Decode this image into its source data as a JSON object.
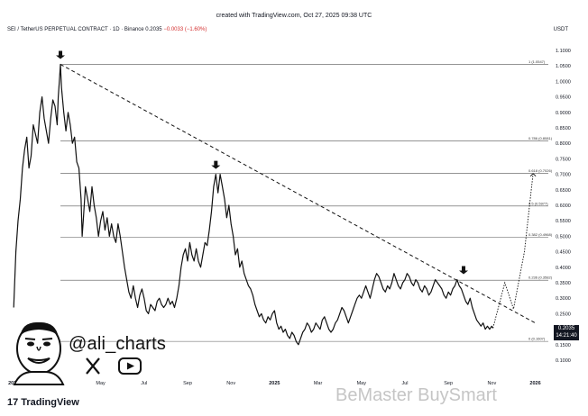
{
  "header": {
    "created_text": "created with TradingView.com, Oct 27, 2025 09:38 UTC",
    "symbol_text": "SEI / TetherUS PERPETUAL CONTRACT · 1D · Binance",
    "price": "0.2035",
    "change": "−0.0033 (−1.60%)",
    "currency": "USDT"
  },
  "branding": {
    "handle": "@ali_charts",
    "logo_text": "TradingView",
    "logo_mark": "17",
    "watermark": "BeMaster BuySmart",
    "icons": [
      "x-icon",
      "youtube-icon"
    ]
  },
  "price_badge": {
    "price": "0.2035",
    "timer": "14:21:40"
  },
  "chart_data": {
    "type": "line",
    "title": "SEI / TetherUS PERPETUAL CONTRACT · 1D · Binance",
    "ylim": [
      0.1,
      1.1
    ],
    "y_ticks": [
      "1.1000",
      "1.0500",
      "1.0000",
      "0.9500",
      "0.9000",
      "0.8500",
      "0.8000",
      "0.7500",
      "0.7000",
      "0.6500",
      "0.6000",
      "0.5500",
      "0.5000",
      "0.4500",
      "0.4000",
      "0.3500",
      "0.3000",
      "0.2500",
      "0.2000",
      "0.1500",
      "0.1000"
    ],
    "x_ticks": [
      {
        "label": "2024",
        "t": 0.0
      },
      {
        "label": "Mar",
        "t": 2.0
      },
      {
        "label": "May",
        "t": 4.0
      },
      {
        "label": "Jul",
        "t": 6.0
      },
      {
        "label": "Sep",
        "t": 8.0
      },
      {
        "label": "Nov",
        "t": 10.0
      },
      {
        "label": "2025",
        "t": 12.0
      },
      {
        "label": "Mar",
        "t": 14.0
      },
      {
        "label": "May",
        "t": 16.0
      },
      {
        "label": "Jul",
        "t": 18.0
      },
      {
        "label": "Sep",
        "t": 20.0
      },
      {
        "label": "Nov",
        "t": 22.0
      },
      {
        "label": "2026",
        "t": 24.0
      }
    ],
    "price_series": [
      [
        0.0,
        0.27
      ],
      [
        0.1,
        0.45
      ],
      [
        0.2,
        0.55
      ],
      [
        0.3,
        0.62
      ],
      [
        0.4,
        0.72
      ],
      [
        0.5,
        0.78
      ],
      [
        0.6,
        0.82
      ],
      [
        0.7,
        0.72
      ],
      [
        0.8,
        0.76
      ],
      [
        0.9,
        0.86
      ],
      [
        1.0,
        0.83
      ],
      [
        1.1,
        0.8
      ],
      [
        1.2,
        0.9
      ],
      [
        1.3,
        0.95
      ],
      [
        1.4,
        0.88
      ],
      [
        1.5,
        0.84
      ],
      [
        1.6,
        0.8
      ],
      [
        1.7,
        0.88
      ],
      [
        1.8,
        0.94
      ],
      [
        1.9,
        0.92
      ],
      [
        2.0,
        0.86
      ],
      [
        2.05,
        0.95
      ],
      [
        2.1,
        1.0
      ],
      [
        2.15,
        1.055
      ],
      [
        2.2,
        0.98
      ],
      [
        2.3,
        0.9
      ],
      [
        2.4,
        0.84
      ],
      [
        2.5,
        0.9
      ],
      [
        2.6,
        0.86
      ],
      [
        2.7,
        0.8
      ],
      [
        2.8,
        0.82
      ],
      [
        2.9,
        0.74
      ],
      [
        3.0,
        0.72
      ],
      [
        3.1,
        0.62
      ],
      [
        3.15,
        0.5
      ],
      [
        3.2,
        0.55
      ],
      [
        3.3,
        0.66
      ],
      [
        3.4,
        0.62
      ],
      [
        3.5,
        0.58
      ],
      [
        3.6,
        0.66
      ],
      [
        3.7,
        0.6
      ],
      [
        3.8,
        0.56
      ],
      [
        3.9,
        0.5
      ],
      [
        4.0,
        0.55
      ],
      [
        4.1,
        0.58
      ],
      [
        4.2,
        0.52
      ],
      [
        4.3,
        0.56
      ],
      [
        4.4,
        0.5
      ],
      [
        4.5,
        0.54
      ],
      [
        4.6,
        0.5
      ],
      [
        4.7,
        0.48
      ],
      [
        4.8,
        0.54
      ],
      [
        4.9,
        0.5
      ],
      [
        5.0,
        0.45
      ],
      [
        5.1,
        0.4
      ],
      [
        5.2,
        0.36
      ],
      [
        5.3,
        0.32
      ],
      [
        5.4,
        0.3
      ],
      [
        5.5,
        0.34
      ],
      [
        5.6,
        0.3
      ],
      [
        5.7,
        0.27
      ],
      [
        5.8,
        0.31
      ],
      [
        5.9,
        0.33
      ],
      [
        6.0,
        0.3
      ],
      [
        6.1,
        0.26
      ],
      [
        6.2,
        0.25
      ],
      [
        6.3,
        0.28
      ],
      [
        6.4,
        0.27
      ],
      [
        6.5,
        0.26
      ],
      [
        6.6,
        0.29
      ],
      [
        6.7,
        0.3
      ],
      [
        6.8,
        0.28
      ],
      [
        6.9,
        0.27
      ],
      [
        7.0,
        0.28
      ],
      [
        7.1,
        0.3
      ],
      [
        7.2,
        0.28
      ],
      [
        7.3,
        0.29
      ],
      [
        7.4,
        0.27
      ],
      [
        7.5,
        0.3
      ],
      [
        7.6,
        0.34
      ],
      [
        7.7,
        0.4
      ],
      [
        7.8,
        0.44
      ],
      [
        7.9,
        0.46
      ],
      [
        8.0,
        0.42
      ],
      [
        8.1,
        0.48
      ],
      [
        8.2,
        0.44
      ],
      [
        8.3,
        0.42
      ],
      [
        8.4,
        0.46
      ],
      [
        8.5,
        0.42
      ],
      [
        8.6,
        0.4
      ],
      [
        8.7,
        0.44
      ],
      [
        8.8,
        0.48
      ],
      [
        8.9,
        0.47
      ],
      [
        9.0,
        0.52
      ],
      [
        9.1,
        0.58
      ],
      [
        9.2,
        0.66
      ],
      [
        9.3,
        0.7
      ],
      [
        9.4,
        0.64
      ],
      [
        9.5,
        0.7
      ],
      [
        9.6,
        0.66
      ],
      [
        9.7,
        0.62
      ],
      [
        9.8,
        0.56
      ],
      [
        9.9,
        0.6
      ],
      [
        10.0,
        0.54
      ],
      [
        10.1,
        0.5
      ],
      [
        10.2,
        0.44
      ],
      [
        10.3,
        0.46
      ],
      [
        10.4,
        0.4
      ],
      [
        10.5,
        0.42
      ],
      [
        10.6,
        0.38
      ],
      [
        10.7,
        0.36
      ],
      [
        10.8,
        0.34
      ],
      [
        10.9,
        0.33
      ],
      [
        11.0,
        0.31
      ],
      [
        11.1,
        0.28
      ],
      [
        11.2,
        0.26
      ],
      [
        11.3,
        0.24
      ],
      [
        11.4,
        0.25
      ],
      [
        11.5,
        0.23
      ],
      [
        11.6,
        0.22
      ],
      [
        11.7,
        0.24
      ],
      [
        11.8,
        0.23
      ],
      [
        11.9,
        0.25
      ],
      [
        12.0,
        0.26
      ],
      [
        12.1,
        0.22
      ],
      [
        12.2,
        0.2
      ],
      [
        12.3,
        0.21
      ],
      [
        12.4,
        0.19
      ],
      [
        12.5,
        0.2
      ],
      [
        12.6,
        0.18
      ],
      [
        12.7,
        0.17
      ],
      [
        12.8,
        0.19
      ],
      [
        12.9,
        0.18
      ],
      [
        13.0,
        0.16
      ],
      [
        13.1,
        0.15
      ],
      [
        13.2,
        0.17
      ],
      [
        13.3,
        0.19
      ],
      [
        13.4,
        0.2
      ],
      [
        13.5,
        0.22
      ],
      [
        13.6,
        0.21
      ],
      [
        13.7,
        0.19
      ],
      [
        13.8,
        0.2
      ],
      [
        13.9,
        0.22
      ],
      [
        14.0,
        0.21
      ],
      [
        14.1,
        0.2
      ],
      [
        14.2,
        0.23
      ],
      [
        14.3,
        0.24
      ],
      [
        14.4,
        0.22
      ],
      [
        14.5,
        0.2
      ],
      [
        14.6,
        0.19
      ],
      [
        14.7,
        0.2
      ],
      [
        14.8,
        0.22
      ],
      [
        14.9,
        0.23
      ],
      [
        15.0,
        0.25
      ],
      [
        15.1,
        0.27
      ],
      [
        15.2,
        0.26
      ],
      [
        15.3,
        0.24
      ],
      [
        15.4,
        0.22
      ],
      [
        15.5,
        0.24
      ],
      [
        15.6,
        0.26
      ],
      [
        15.7,
        0.28
      ],
      [
        15.8,
        0.3
      ],
      [
        15.9,
        0.31
      ],
      [
        16.0,
        0.3
      ],
      [
        16.1,
        0.32
      ],
      [
        16.2,
        0.34
      ],
      [
        16.3,
        0.32
      ],
      [
        16.4,
        0.3
      ],
      [
        16.5,
        0.33
      ],
      [
        16.6,
        0.36
      ],
      [
        16.7,
        0.38
      ],
      [
        16.8,
        0.37
      ],
      [
        16.9,
        0.35
      ],
      [
        17.0,
        0.33
      ],
      [
        17.1,
        0.32
      ],
      [
        17.2,
        0.34
      ],
      [
        17.3,
        0.33
      ],
      [
        17.4,
        0.35
      ],
      [
        17.5,
        0.38
      ],
      [
        17.6,
        0.36
      ],
      [
        17.7,
        0.34
      ],
      [
        17.8,
        0.33
      ],
      [
        17.9,
        0.35
      ],
      [
        18.0,
        0.36
      ],
      [
        18.1,
        0.38
      ],
      [
        18.2,
        0.37
      ],
      [
        18.3,
        0.35
      ],
      [
        18.4,
        0.34
      ],
      [
        18.5,
        0.36
      ],
      [
        18.6,
        0.35
      ],
      [
        18.7,
        0.33
      ],
      [
        18.8,
        0.32
      ],
      [
        18.9,
        0.34
      ],
      [
        19.0,
        0.33
      ],
      [
        19.1,
        0.31
      ],
      [
        19.2,
        0.32
      ],
      [
        19.3,
        0.34
      ],
      [
        19.4,
        0.36
      ],
      [
        19.5,
        0.35
      ],
      [
        19.6,
        0.34
      ],
      [
        19.7,
        0.33
      ],
      [
        19.8,
        0.31
      ],
      [
        19.9,
        0.3
      ],
      [
        20.0,
        0.32
      ],
      [
        20.1,
        0.31
      ],
      [
        20.2,
        0.33
      ],
      [
        20.3,
        0.34
      ],
      [
        20.4,
        0.36
      ],
      [
        20.5,
        0.34
      ],
      [
        20.6,
        0.33
      ],
      [
        20.7,
        0.31
      ],
      [
        20.8,
        0.29
      ],
      [
        20.9,
        0.28
      ],
      [
        21.0,
        0.3
      ],
      [
        21.1,
        0.27
      ],
      [
        21.2,
        0.25
      ],
      [
        21.3,
        0.23
      ],
      [
        21.4,
        0.22
      ],
      [
        21.5,
        0.21
      ],
      [
        21.6,
        0.22
      ],
      [
        21.7,
        0.2
      ],
      [
        21.8,
        0.21
      ],
      [
        21.9,
        0.2
      ],
      [
        22.0,
        0.21
      ],
      [
        22.05,
        0.2035
      ]
    ],
    "fib_levels": [
      {
        "label": "1 (1.0547)",
        "value": 1.0547
      },
      {
        "label": "0.786 (0.8081)",
        "value": 0.8081
      },
      {
        "label": "0.618 (0.7026)",
        "value": 0.7026
      },
      {
        "label": "0.5 (0.5977)",
        "value": 0.5977
      },
      {
        "label": "0.382 (0.4968)",
        "value": 0.4968
      },
      {
        "label": "0.236 (0.3582)",
        "value": 0.3582
      },
      {
        "label": "0 (0.1607)",
        "value": 0.1607
      }
    ],
    "trendline": [
      [
        2.15,
        1.055
      ],
      [
        24.0,
        0.22
      ]
    ],
    "arrows": [
      [
        2.15,
        1.055
      ],
      [
        9.3,
        0.7
      ],
      [
        20.7,
        0.36
      ]
    ],
    "projection": [
      [
        22.05,
        0.2035
      ],
      [
        22.6,
        0.35
      ],
      [
        23.0,
        0.265
      ],
      [
        23.5,
        0.45
      ],
      [
        23.9,
        0.7026
      ]
    ],
    "grid": false
  }
}
